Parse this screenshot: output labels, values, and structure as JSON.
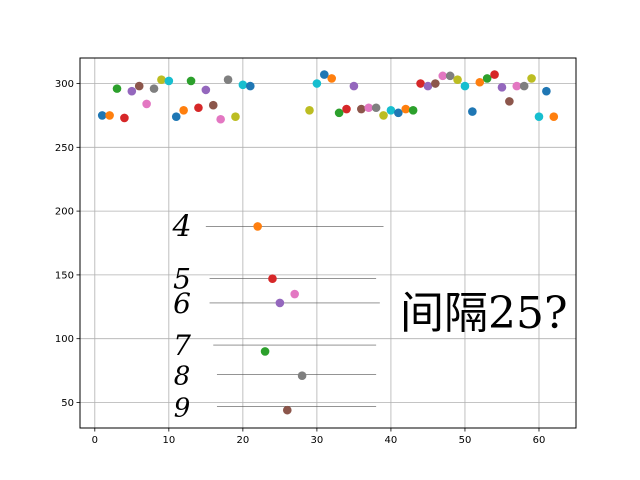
{
  "chart_data": {
    "type": "scatter",
    "title": "",
    "xlabel": "",
    "ylabel": "",
    "xlim": [
      -2,
      65
    ],
    "ylim": [
      30,
      320
    ],
    "grid": true,
    "x_ticks": [
      0,
      10,
      20,
      30,
      40,
      50,
      60
    ],
    "y_ticks": [
      50,
      100,
      150,
      200,
      250,
      300
    ],
    "colors": [
      "#1f77b4",
      "#ff7f0e",
      "#2ca02c",
      "#d62728",
      "#9467bd",
      "#8c564b",
      "#e377c2",
      "#7f7f7f",
      "#bcbd22",
      "#17becf"
    ],
    "points": [
      {
        "x": 1,
        "y": 275
      },
      {
        "x": 2,
        "y": 275
      },
      {
        "x": 3,
        "y": 296
      },
      {
        "x": 4,
        "y": 273
      },
      {
        "x": 5,
        "y": 294
      },
      {
        "x": 6,
        "y": 298
      },
      {
        "x": 7,
        "y": 284
      },
      {
        "x": 8,
        "y": 296
      },
      {
        "x": 9,
        "y": 303
      },
      {
        "x": 10,
        "y": 302
      },
      {
        "x": 11,
        "y": 274
      },
      {
        "x": 12,
        "y": 279
      },
      {
        "x": 13,
        "y": 302
      },
      {
        "x": 14,
        "y": 281
      },
      {
        "x": 15,
        "y": 295
      },
      {
        "x": 16,
        "y": 283
      },
      {
        "x": 17,
        "y": 272
      },
      {
        "x": 18,
        "y": 303
      },
      {
        "x": 19,
        "y": 274
      },
      {
        "x": 20,
        "y": 299
      },
      {
        "x": 21,
        "y": 298
      },
      {
        "x": 22,
        "y": 188
      },
      {
        "x": 23,
        "y": 90
      },
      {
        "x": 24,
        "y": 147
      },
      {
        "x": 25,
        "y": 128
      },
      {
        "x": 26,
        "y": 44
      },
      {
        "x": 27,
        "y": 135
      },
      {
        "x": 28,
        "y": 71
      },
      {
        "x": 29,
        "y": 279
      },
      {
        "x": 30,
        "y": 300
      },
      {
        "x": 31,
        "y": 307
      },
      {
        "x": 32,
        "y": 304
      },
      {
        "x": 33,
        "y": 277
      },
      {
        "x": 34,
        "y": 280
      },
      {
        "x": 35,
        "y": 298
      },
      {
        "x": 36,
        "y": 280
      },
      {
        "x": 37,
        "y": 281
      },
      {
        "x": 38,
        "y": 281
      },
      {
        "x": 39,
        "y": 275
      },
      {
        "x": 40,
        "y": 279
      },
      {
        "x": 41,
        "y": 277
      },
      {
        "x": 42,
        "y": 280
      },
      {
        "x": 43,
        "y": 279
      },
      {
        "x": 44,
        "y": 300
      },
      {
        "x": 45,
        "y": 298
      },
      {
        "x": 46,
        "y": 300
      },
      {
        "x": 47,
        "y": 306
      },
      {
        "x": 48,
        "y": 306
      },
      {
        "x": 49,
        "y": 303
      },
      {
        "x": 50,
        "y": 298
      },
      {
        "x": 51,
        "y": 278
      },
      {
        "x": 52,
        "y": 301
      },
      {
        "x": 53,
        "y": 304
      },
      {
        "x": 54,
        "y": 307
      },
      {
        "x": 55,
        "y": 297
      },
      {
        "x": 56,
        "y": 286
      },
      {
        "x": 57,
        "y": 298
      },
      {
        "x": 58,
        "y": 298
      },
      {
        "x": 59,
        "y": 304
      },
      {
        "x": 60,
        "y": 274
      },
      {
        "x": 61,
        "y": 294
      },
      {
        "x": 62,
        "y": 274
      }
    ],
    "annotations": {
      "digit_labels": [
        {
          "text": "4",
          "y": 188,
          "line_x": [
            15,
            39
          ]
        },
        {
          "text": "5",
          "y": 147,
          "line_x": [
            15.5,
            38
          ]
        },
        {
          "text": "6",
          "y": 128,
          "line_x": [
            15.5,
            38.5
          ]
        },
        {
          "text": "7",
          "y": 95,
          "line_x": [
            16,
            38
          ]
        },
        {
          "text": "8",
          "y": 72,
          "line_x": [
            16.5,
            38
          ]
        },
        {
          "text": "9",
          "y": 47,
          "line_x": [
            16.5,
            38
          ]
        }
      ],
      "note": "间隔25?"
    }
  }
}
